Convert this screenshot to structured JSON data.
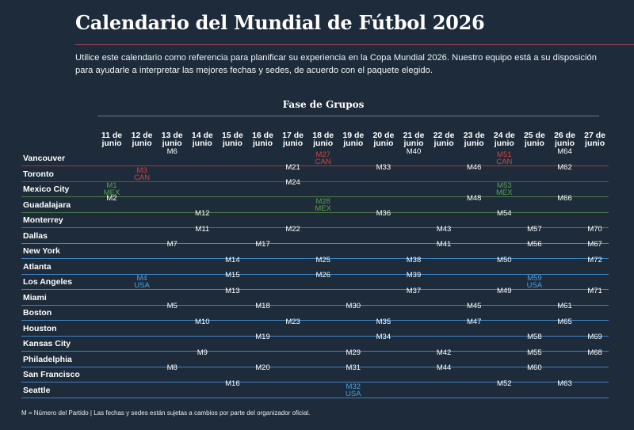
{
  "title": "Calendario del Mundial de Fútbol 2026",
  "intro": "Utilice este calendario como referencia para planificar su experiencia en la Copa Mundial 2026. Nuestro equipo está a su disposición para ayudarle a interpretar las mejores fechas y sedes, de acuerdo con el paquete elegido.",
  "section_title": "Fase de Grupos",
  "colors": {
    "background": "#1d2b3a",
    "canada": "#d0453f",
    "mexico": "#5aa14c",
    "usa": "#4aa3e6"
  },
  "dates": [
    {
      "day": "11 de",
      "month": "junio"
    },
    {
      "day": "12 de",
      "month": "junio"
    },
    {
      "day": "13 de",
      "month": "junio"
    },
    {
      "day": "14 de",
      "month": "junio"
    },
    {
      "day": "15 de",
      "month": "junio"
    },
    {
      "day": "16 de",
      "month": "junio"
    },
    {
      "day": "17 de",
      "month": "junio"
    },
    {
      "day": "18 de",
      "month": "junio"
    },
    {
      "day": "19 de",
      "month": "junio"
    },
    {
      "day": "20 de",
      "month": "junio"
    },
    {
      "day": "21 de",
      "month": "junio"
    },
    {
      "day": "22 de",
      "month": "junio"
    },
    {
      "day": "23 de",
      "month": "junio"
    },
    {
      "day": "24 de",
      "month": "junio"
    },
    {
      "day": "25 de",
      "month": "junio"
    },
    {
      "day": "26 de",
      "month": "junio"
    },
    {
      "day": "27 de",
      "month": "junio"
    }
  ],
  "cities": [
    {
      "name": "Vancouver",
      "line": "red",
      "matches": [
        {
          "date": 2,
          "label": "M6"
        },
        {
          "date": 7,
          "label": "M27",
          "team": "CAN",
          "host": "red"
        },
        {
          "date": 10,
          "label": "M40"
        },
        {
          "date": 13,
          "label": "M51",
          "team": "CAN",
          "host": "red"
        },
        {
          "date": 15,
          "label": "M64"
        }
      ]
    },
    {
      "name": "Toronto",
      "line": "red",
      "matches": [
        {
          "date": 1,
          "label": "M3",
          "team": "CAN",
          "host": "red"
        },
        {
          "date": 6,
          "label": "M21"
        },
        {
          "date": 9,
          "label": "M33"
        },
        {
          "date": 12,
          "label": "M46"
        },
        {
          "date": 15,
          "label": "M62"
        }
      ]
    },
    {
      "name": "Mexico City",
      "line": "green",
      "matches": [
        {
          "date": 0,
          "label": "M1",
          "team": "MEX",
          "host": "green"
        },
        {
          "date": 6,
          "label": "M24"
        },
        {
          "date": 13,
          "label": "M53",
          "team": "MEX",
          "host": "green"
        }
      ]
    },
    {
      "name": "Guadalajara",
      "line": "green",
      "matches": [
        {
          "date": 0,
          "label": "M2"
        },
        {
          "date": 7,
          "label": "M28",
          "team": "MEX",
          "host": "green"
        },
        {
          "date": 12,
          "label": "M48"
        },
        {
          "date": 15,
          "label": "M66"
        }
      ]
    },
    {
      "name": "Monterrey",
      "line": "green",
      "matches": [
        {
          "date": 3,
          "label": "M12"
        },
        {
          "date": 9,
          "label": "M36"
        },
        {
          "date": 13,
          "label": "M54"
        }
      ]
    },
    {
      "name": "Dallas",
      "line": "blue",
      "matches": [
        {
          "date": 3,
          "label": "M11"
        },
        {
          "date": 6,
          "label": "M22"
        },
        {
          "date": 11,
          "label": "M43"
        },
        {
          "date": 14,
          "label": "M57"
        },
        {
          "date": 16,
          "label": "M70"
        }
      ]
    },
    {
      "name": "New York",
      "line": "blue",
      "matches": [
        {
          "date": 2,
          "label": "M7"
        },
        {
          "date": 5,
          "label": "M17"
        },
        {
          "date": 11,
          "label": "M41"
        },
        {
          "date": 14,
          "label": "M56"
        },
        {
          "date": 16,
          "label": "M67"
        }
      ]
    },
    {
      "name": "Atlanta",
      "line": "blue",
      "matches": [
        {
          "date": 4,
          "label": "M14"
        },
        {
          "date": 7,
          "label": "M25"
        },
        {
          "date": 10,
          "label": "M38"
        },
        {
          "date": 13,
          "label": "M50"
        },
        {
          "date": 16,
          "label": "M72"
        }
      ]
    },
    {
      "name": "Los Angeles",
      "line": "blue",
      "matches": [
        {
          "date": 1,
          "label": "M4",
          "team": "USA",
          "host": "blue"
        },
        {
          "date": 4,
          "label": "M15"
        },
        {
          "date": 7,
          "label": "M26"
        },
        {
          "date": 10,
          "label": "M39"
        },
        {
          "date": 14,
          "label": "M59",
          "team": "USA",
          "host": "blue"
        }
      ]
    },
    {
      "name": "Miami",
      "line": "blue",
      "matches": [
        {
          "date": 4,
          "label": "M13"
        },
        {
          "date": 10,
          "label": "M37"
        },
        {
          "date": 13,
          "label": "M49"
        },
        {
          "date": 16,
          "label": "M71"
        }
      ]
    },
    {
      "name": "Boston",
      "line": "blue",
      "matches": [
        {
          "date": 2,
          "label": "M5"
        },
        {
          "date": 5,
          "label": "M18"
        },
        {
          "date": 8,
          "label": "M30"
        },
        {
          "date": 12,
          "label": "M45"
        },
        {
          "date": 15,
          "label": "M61"
        }
      ]
    },
    {
      "name": "Houston",
      "line": "blue",
      "matches": [
        {
          "date": 3,
          "label": "M10"
        },
        {
          "date": 6,
          "label": "M23"
        },
        {
          "date": 9,
          "label": "M35"
        },
        {
          "date": 12,
          "label": "M47"
        },
        {
          "date": 15,
          "label": "M65"
        }
      ]
    },
    {
      "name": "Kansas City",
      "line": "blue",
      "matches": [
        {
          "date": 5,
          "label": "M19"
        },
        {
          "date": 9,
          "label": "M34"
        },
        {
          "date": 14,
          "label": "M58"
        },
        {
          "date": 16,
          "label": "M69"
        }
      ]
    },
    {
      "name": "Philadelphia",
      "line": "blue",
      "matches": [
        {
          "date": 3,
          "label": "M9"
        },
        {
          "date": 8,
          "label": "M29"
        },
        {
          "date": 11,
          "label": "M42"
        },
        {
          "date": 14,
          "label": "M55"
        },
        {
          "date": 16,
          "label": "M68"
        }
      ]
    },
    {
      "name": "San Francisco",
      "line": "blue",
      "matches": [
        {
          "date": 2,
          "label": "M8"
        },
        {
          "date": 5,
          "label": "M20"
        },
        {
          "date": 8,
          "label": "M31"
        },
        {
          "date": 11,
          "label": "M44"
        },
        {
          "date": 14,
          "label": "M60"
        }
      ]
    },
    {
      "name": "Seattle",
      "line": "blue",
      "matches": [
        {
          "date": 4,
          "label": "M16"
        },
        {
          "date": 8,
          "label": "M32",
          "team": "USA",
          "host": "blue"
        },
        {
          "date": 13,
          "label": "M52"
        },
        {
          "date": 15,
          "label": "M63"
        }
      ]
    }
  ],
  "footnote": "M = Número del Partido | Las fechas y sedes están sujetas a cambios por parte del organizador oficial."
}
